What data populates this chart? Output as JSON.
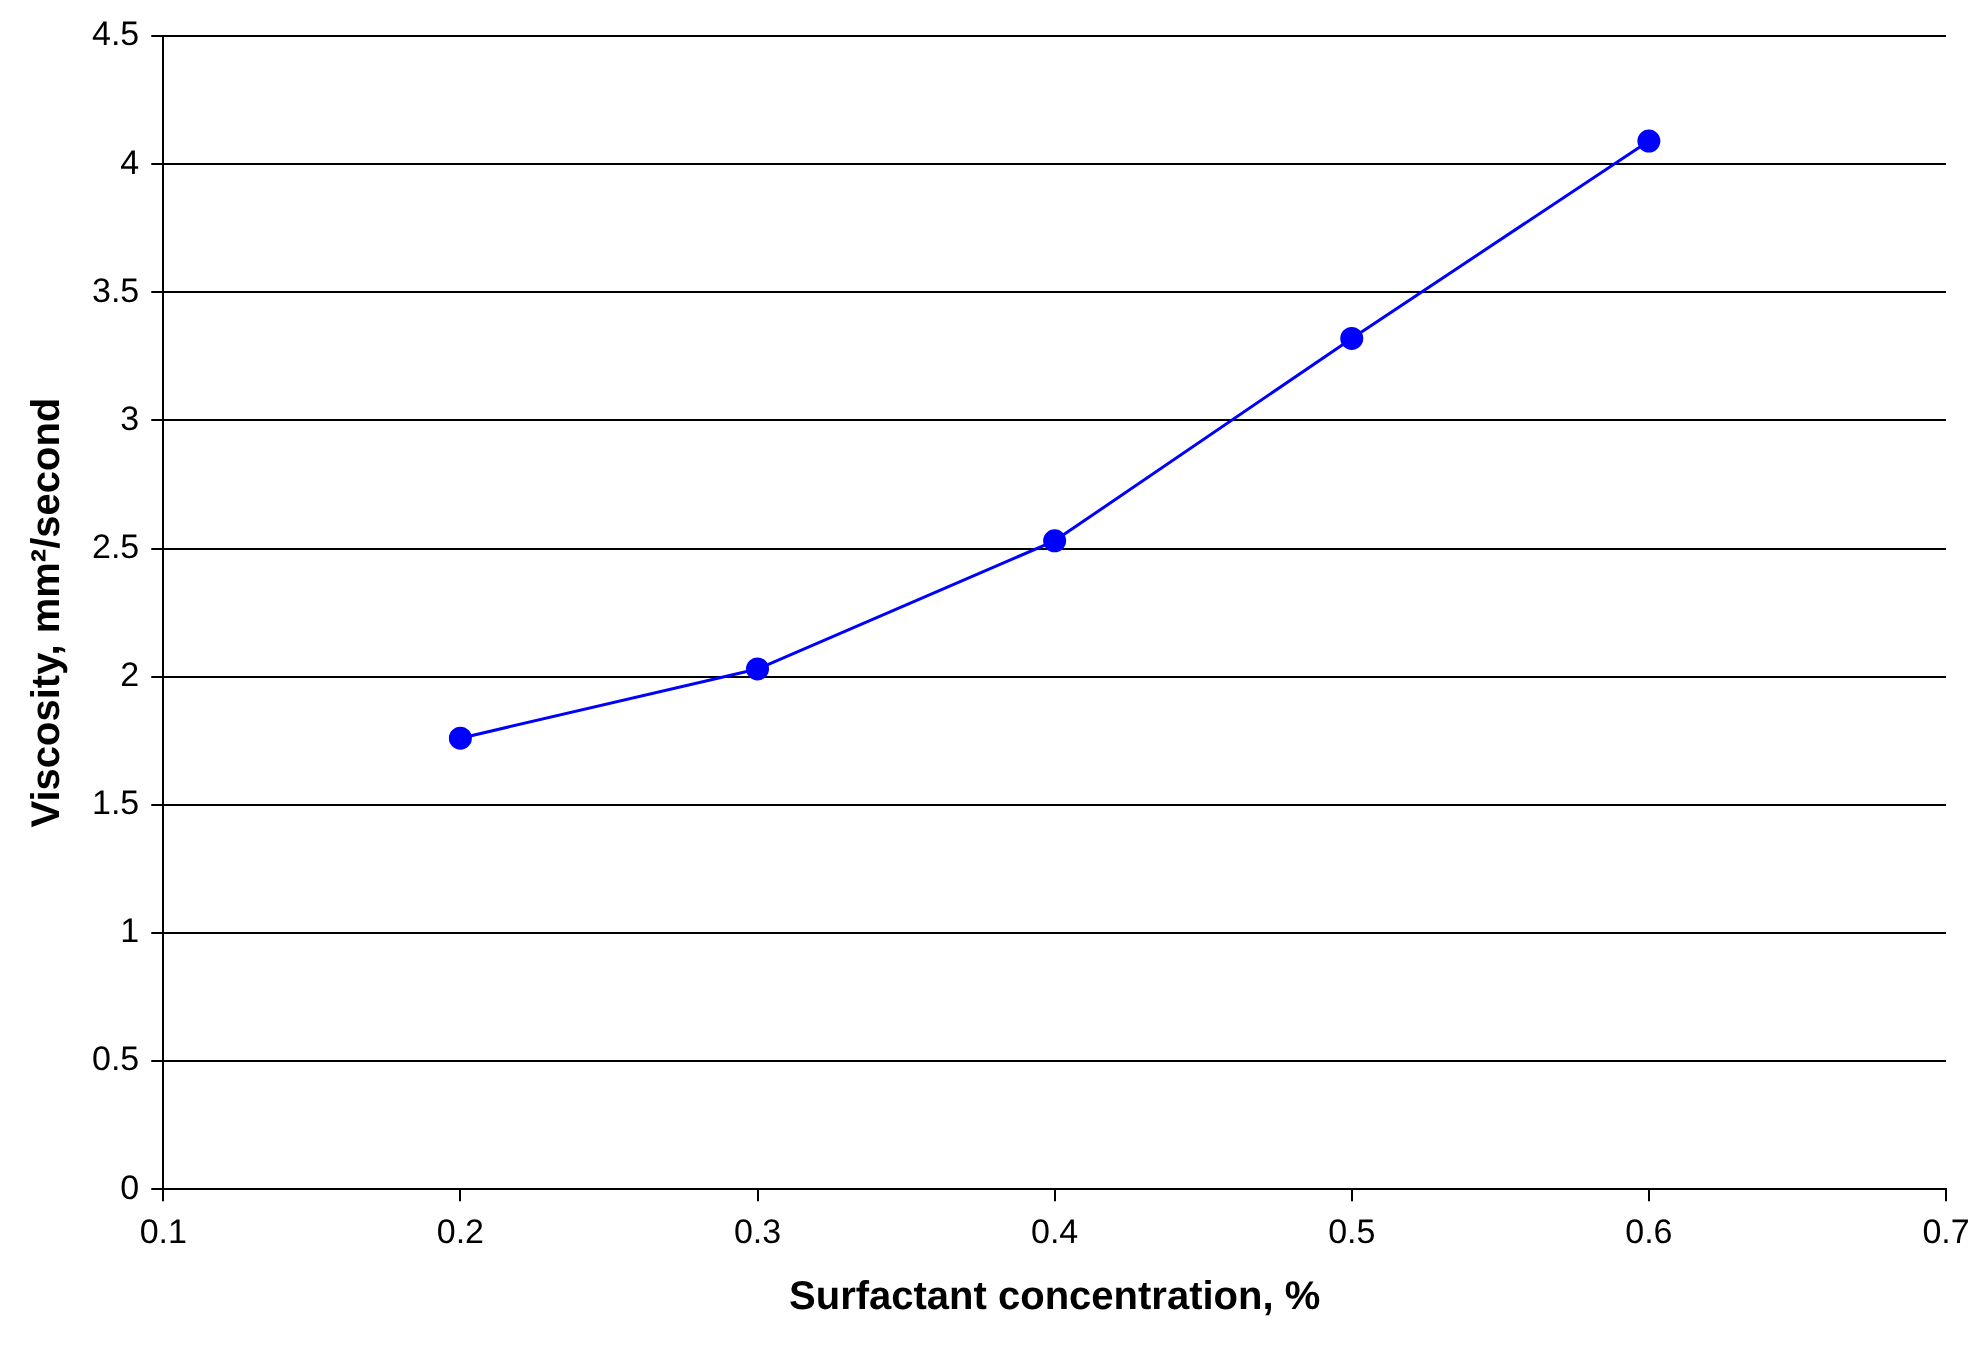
{
  "chart_data": {
    "type": "line",
    "xlabel": "Surfactant concentration, %",
    "ylabel": "Viscosity, mm²/second",
    "x": [
      0.2,
      0.3,
      0.4,
      0.5,
      0.6
    ],
    "series": [
      {
        "color": "#0000ff",
        "values": [
          1.76,
          2.03,
          2.53,
          3.32,
          4.09
        ]
      }
    ],
    "xlim": [
      0.1,
      0.7
    ],
    "xticks": [
      0.1,
      0.2,
      0.3,
      0.4,
      0.5,
      0.6,
      0.7
    ],
    "ylim": [
      0,
      4.5
    ],
    "yticks": [
      0,
      0.5,
      1,
      1.5,
      2,
      2.5,
      3,
      3.5,
      4,
      4.5
    ],
    "grid": "y",
    "marker": "circle",
    "line_style": "solid",
    "legend": false
  }
}
